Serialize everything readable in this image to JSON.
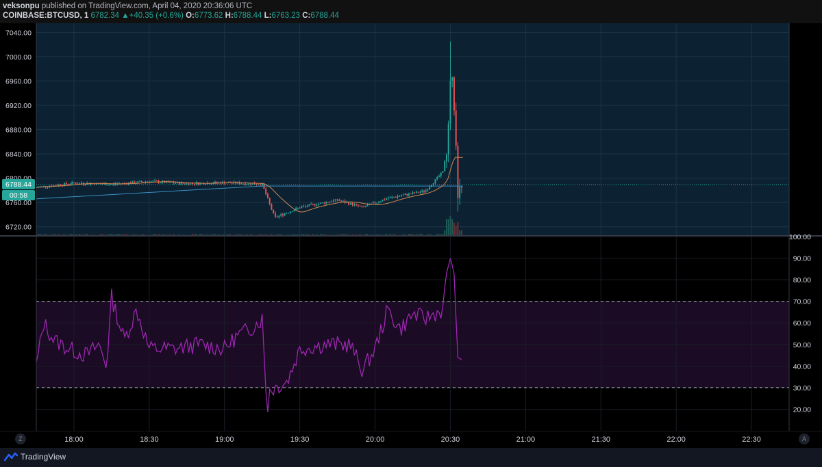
{
  "header": {
    "author": "veksonpu",
    "published_text": "published on TradingView.com, April 04, 2020 20:36:06 UTC",
    "symbol": "COINBASE:BTCUSD, 1",
    "last": "6782.34",
    "change_arrow": "▲",
    "change": "+40.35 (+0.6%)",
    "o_label": "O:",
    "o": "6773.62",
    "h_label": "H:",
    "h": "6788.44",
    "l_label": "L:",
    "l": "6763.23",
    "c_label": "C:",
    "c": "6788.44"
  },
  "price_scale": {
    "ticks": [
      "7040.00",
      "7000.00",
      "6960.00",
      "6920.00",
      "6880.00",
      "6840.00",
      "6800.00",
      "6760.00",
      "6720.00"
    ],
    "ylim": [
      6705,
      7055
    ],
    "current_price_label": "6788.44",
    "countdown_label": "00:58"
  },
  "rsi_scale": {
    "ticks": [
      "100.00",
      "90.00",
      "80.00",
      "70.00",
      "60.00",
      "50.00",
      "40.00",
      "30.00",
      "20.00"
    ],
    "ylim": [
      10,
      100
    ],
    "upper_band": 70,
    "lower_band": 30
  },
  "time_axis": {
    "labels": [
      "18:00",
      "18:30",
      "19:00",
      "19:30",
      "20:00",
      "20:30",
      "21:00",
      "21:30",
      "22:00",
      "22:30"
    ]
  },
  "buttons": {
    "z": "Z",
    "a": "A"
  },
  "footer": {
    "brand": "TradingView"
  },
  "colors": {
    "up": "#26a69a",
    "down": "#ef5350",
    "price_bg": "#0c2233",
    "rsi_line": "#9c27b0",
    "band_fill": "#1b0b24",
    "ma_orange": "#d2884f",
    "ma_blue": "#3b8fc4"
  },
  "chart_data": [
    {
      "type": "candlestick",
      "title": "COINBASE:BTCUSD, 1",
      "x_range": [
        "17:45",
        "22:45"
      ],
      "ylim": [
        6705,
        7055
      ],
      "keypoints": [
        {
          "time": "17:45",
          "price": 6785
        },
        {
          "time": "18:00",
          "price": 6792
        },
        {
          "time": "18:15",
          "price": 6790
        },
        {
          "time": "18:30",
          "price": 6795
        },
        {
          "time": "18:45",
          "price": 6791
        },
        {
          "time": "19:00",
          "price": 6793
        },
        {
          "time": "19:15",
          "price": 6790
        },
        {
          "time": "19:20",
          "price": 6735
        },
        {
          "time": "19:30",
          "price": 6752
        },
        {
          "time": "19:45",
          "price": 6764
        },
        {
          "time": "19:55",
          "price": 6752
        },
        {
          "time": "20:05",
          "price": 6767
        },
        {
          "time": "20:20",
          "price": 6779
        },
        {
          "time": "20:27",
          "price": 6810
        },
        {
          "time": "20:29",
          "price": 6860
        },
        {
          "time": "20:30",
          "price": 6965
        },
        {
          "time": "20:31",
          "price": 6955
        },
        {
          "time": "20:32",
          "price": 6878
        },
        {
          "time": "20:33",
          "price": 6775
        },
        {
          "time": "20:35",
          "price": 6788
        }
      ],
      "spike_high": 7025,
      "spike_low": 6745
    },
    {
      "type": "line",
      "series": [
        {
          "name": "",
          "x": [
            "17:45",
            "17:48",
            "17:52",
            "17:58",
            "18:05",
            "18:10",
            "18:13",
            "18:15",
            "18:20",
            "18:25",
            "18:30",
            "18:40",
            "18:50",
            "19:00",
            "19:05",
            "19:10",
            "19:15",
            "19:17",
            "19:18",
            "19:20",
            "19:25",
            "19:30",
            "19:40",
            "19:50",
            "19:55",
            "20:00",
            "20:05",
            "20:10",
            "20:15",
            "20:20",
            "20:25",
            "20:27",
            "20:29",
            "20:30",
            "20:32",
            "20:33",
            "20:35"
          ],
          "y": [
            40,
            60,
            52,
            48,
            45,
            50,
            40,
            72,
            52,
            66,
            48,
            48,
            50,
            48,
            54,
            57,
            62,
            19,
            29,
            30,
            33,
            48,
            50,
            50,
            38,
            48,
            66,
            57,
            64,
            62,
            65,
            66,
            86,
            92,
            75,
            40,
            43
          ]
        }
      ],
      "reference_lines": [
        70,
        30
      ],
      "ylim": [
        10,
        100
      ]
    }
  ]
}
